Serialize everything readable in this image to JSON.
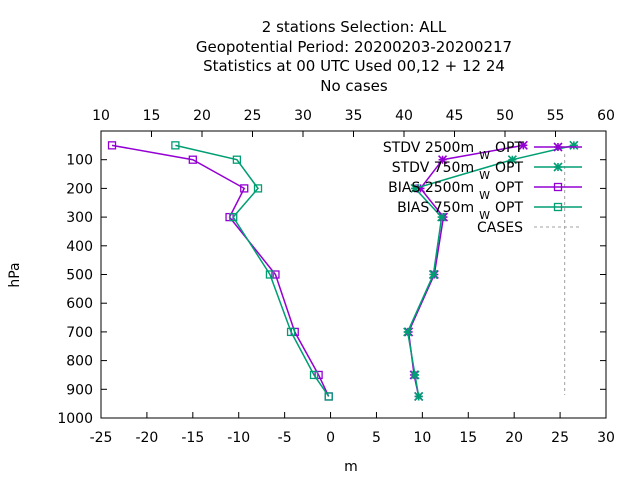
{
  "title_lines": [
    "2 stations Selection: ALL",
    "Geopotential  Period: 20200203-20200217",
    "Statistics at 00 UTC  Used  00,12  + 12 24",
    "No cases"
  ],
  "colors": {
    "purple": "#9400d3",
    "teal": "#009e73",
    "cases": "#a0a0a0"
  },
  "chart_data": {
    "type": "line",
    "xlabel": "m",
    "ylabel": "hPa",
    "xlim": [
      -25,
      30
    ],
    "ylim": [
      1000,
      0
    ],
    "x2lim": [
      10,
      60
    ],
    "xticks": [
      "-25",
      "-20",
      "-15",
      "-10",
      "-5",
      "0",
      "5",
      "10",
      "15",
      "20",
      "25",
      "30"
    ],
    "x2ticks": [
      "10",
      "15",
      "20",
      "25",
      "30",
      "35",
      "40",
      "45",
      "50",
      "55",
      "60"
    ],
    "yticks": [
      "100",
      "200",
      "300",
      "400",
      "500",
      "600",
      "700",
      "800",
      "900",
      "1000"
    ],
    "grid": false,
    "legend_position": "top-right",
    "series": [
      {
        "name": "STDV 2500m",
        "sub": "W",
        "suffix": "OPT",
        "marker": "star",
        "color": "#9400d3",
        "points": [
          [
            21,
            50
          ],
          [
            12.2,
            100
          ],
          [
            9.8,
            200
          ],
          [
            12.3,
            300
          ],
          [
            11.3,
            500
          ],
          [
            8.5,
            700
          ],
          [
            9.1,
            850
          ],
          [
            9.6,
            925
          ]
        ]
      },
      {
        "name": "STDV 750m",
        "sub": "W",
        "suffix": "OPT",
        "marker": "star",
        "color": "#009e73",
        "points": [
          [
            26.5,
            50
          ],
          [
            19.8,
            100
          ],
          [
            9.2,
            200
          ],
          [
            12.1,
            300
          ],
          [
            11.2,
            500
          ],
          [
            8.4,
            700
          ],
          [
            9.2,
            850
          ],
          [
            9.6,
            925
          ]
        ]
      },
      {
        "name": "BIAS 2500m",
        "sub": "W",
        "suffix": "OPT",
        "marker": "square",
        "color": "#9400d3",
        "points": [
          [
            -23.8,
            50
          ],
          [
            -15,
            100
          ],
          [
            -9.4,
            200
          ],
          [
            -11,
            300
          ],
          [
            -6,
            500
          ],
          [
            -3.9,
            700
          ],
          [
            -1.3,
            850
          ],
          [
            -0.2,
            925
          ]
        ]
      },
      {
        "name": "BIAS 750m",
        "sub": "W",
        "suffix": "OPT",
        "marker": "square",
        "color": "#009e73",
        "points": [
          [
            -16.9,
            50
          ],
          [
            -10.2,
            100
          ],
          [
            -7.9,
            200
          ],
          [
            -10.6,
            300
          ],
          [
            -6.6,
            500
          ],
          [
            -4.3,
            700
          ],
          [
            -1.8,
            850
          ],
          [
            -0.2,
            925
          ]
        ]
      },
      {
        "name": "CASES",
        "marker": "none",
        "color": "#a0a0a0",
        "dashed": true,
        "points": [
          [
            25.5,
            80
          ],
          [
            25.5,
            250
          ],
          [
            25.5,
            920
          ]
        ]
      }
    ]
  }
}
